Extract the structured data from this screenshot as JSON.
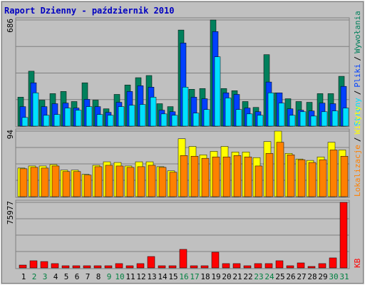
{
  "title": "Raport Dzienny -  październik 2010",
  "chart_data": [
    {
      "type": "bar",
      "ylim": [
        0,
        686
      ],
      "yticks": [
        686
      ],
      "separator": "/",
      "series": [
        {
          "name": "Wywołania",
          "color": "#00805c",
          "values": [
            187,
            355,
            168,
            210,
            224,
            159,
            280,
            168,
            112,
            205,
            266,
            313,
            327,
            145,
            126,
            621,
            238,
            243,
            686,
            243,
            229,
            159,
            121,
            462,
            215,
            177,
            159,
            154,
            210,
            210,
            322
          ]
        },
        {
          "name": "Pliki",
          "color": "#0040ff",
          "values": [
            126,
            280,
            126,
            145,
            149,
            117,
            173,
            126,
            89,
            154,
            224,
            261,
            252,
            103,
            93,
            537,
            187,
            177,
            611,
            215,
            205,
            117,
            93,
            285,
            215,
            112,
            103,
            98,
            149,
            145,
            257
          ]
        },
        {
          "name": "Strony",
          "color": "#00e0ff",
          "values": [
            56,
            215,
            70,
            75,
            117,
            103,
            126,
            75,
            70,
            126,
            135,
            140,
            187,
            79,
            70,
            252,
            84,
            107,
            448,
            182,
            107,
            79,
            70,
            215,
            149,
            70,
            93,
            65,
            93,
            98,
            117
          ]
        }
      ]
    },
    {
      "type": "bar",
      "ylim": [
        0,
        94
      ],
      "yticks": [
        94
      ],
      "separator": "/",
      "series": [
        {
          "name": "Wizyty",
          "color": "#ffff00",
          "values": [
            41,
            44,
            44,
            46,
            38,
            38,
            32,
            45,
            50,
            49,
            44,
            50,
            50,
            43,
            37,
            83,
            72,
            60,
            65,
            72,
            64,
            64,
            56,
            79,
            94,
            62,
            54,
            52,
            57,
            78,
            67
          ]
        },
        {
          "name": "Lokalizacje",
          "color": "#ff8000",
          "values": [
            40,
            42,
            41,
            44,
            36,
            36,
            31,
            43,
            45,
            44,
            42,
            43,
            45,
            42,
            35,
            59,
            58,
            55,
            57,
            57,
            59,
            57,
            44,
            62,
            78,
            60,
            53,
            49,
            53,
            67,
            58
          ]
        }
      ]
    },
    {
      "type": "bar",
      "ylim": [
        0,
        75977
      ],
      "yticks": [
        75977
      ],
      "separator": "/",
      "series": [
        {
          "name": "KB",
          "color": "#ff0000",
          "values": [
            3300,
            8300,
            7400,
            5000,
            2500,
            2500,
            2500,
            2500,
            2500,
            5000,
            2500,
            5000,
            13200,
            2500,
            2500,
            21500,
            2500,
            2500,
            18200,
            5000,
            5000,
            2500,
            5000,
            5000,
            8300,
            2500,
            5800,
            1700,
            5000,
            11600,
            75977
          ]
        }
      ],
      "categories": [
        "1",
        "2",
        "3",
        "4",
        "5",
        "6",
        "7",
        "8",
        "9",
        "10",
        "11",
        "12",
        "13",
        "14",
        "15",
        "16",
        "17",
        "18",
        "19",
        "20",
        "21",
        "22",
        "23",
        "24",
        "25",
        "26",
        "27",
        "28",
        "29",
        "30",
        "31"
      ],
      "category_colors": [
        "#000000",
        "#008040",
        "#008040",
        "#000000",
        "#000000",
        "#000000",
        "#000000",
        "#000000",
        "#008040",
        "#008040",
        "#000000",
        "#000000",
        "#000000",
        "#000000",
        "#000000",
        "#008040",
        "#008040",
        "#000000",
        "#000000",
        "#000000",
        "#000000",
        "#000000",
        "#008040",
        "#008040",
        "#000000",
        "#000000",
        "#000000",
        "#000000",
        "#000000",
        "#008040",
        "#008040"
      ]
    }
  ]
}
